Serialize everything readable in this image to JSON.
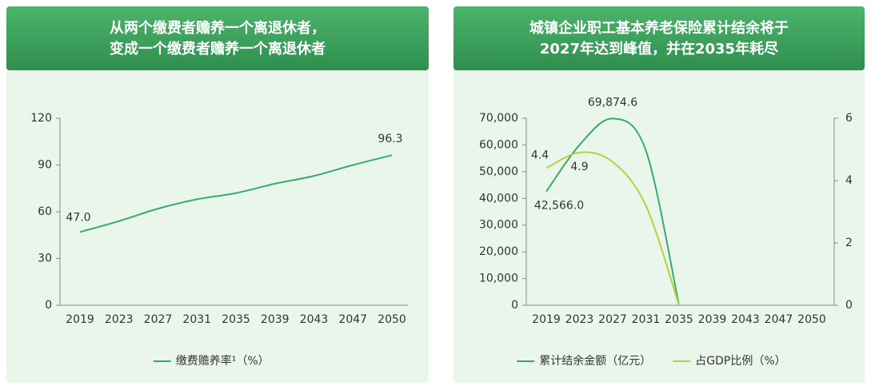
{
  "chart_data": [
    {
      "type": "line",
      "title": [
        "从两个缴费者赡养一个离退休者，",
        "变成一个缴费者赡养一个离退休者"
      ],
      "categories": [
        "2019",
        "2023",
        "2027",
        "2031",
        "2035",
        "2039",
        "2043",
        "2047",
        "2050"
      ],
      "series": [
        {
          "name": "缴费赡养率¹（%）",
          "color": "#3aab68",
          "values": [
            47.0,
            54,
            62,
            68,
            72,
            78,
            83,
            90,
            96.3
          ],
          "value_labels": [
            "47.0",
            null,
            null,
            null,
            null,
            null,
            null,
            null,
            "96.3"
          ]
        }
      ],
      "ylim": [
        0,
        120
      ],
      "yticks": [
        0,
        30,
        60,
        90,
        120
      ]
    },
    {
      "type": "line",
      "title": [
        "城镇企业职工基本养老保险累计结余将于",
        "2027年达到峰值，并在2035年耗尽"
      ],
      "categories": [
        "2019",
        "2023",
        "2027",
        "2031",
        "2035",
        "2039",
        "2043",
        "2047",
        "2050"
      ],
      "series": [
        {
          "name": "累计结余金额（亿元）",
          "color": "#3aab68",
          "values": [
            42566.0,
            60000,
            69874.6,
            58000,
            0,
            null,
            null,
            null,
            null
          ],
          "value_labels": [
            "42,566.0",
            null,
            "69,874.6",
            null,
            null,
            null,
            null,
            null,
            null
          ]
        },
        {
          "name": "占GDP比例（%）",
          "color": "#b8d03e",
          "axis": "y2",
          "values": [
            4.4,
            4.9,
            4.6,
            3.2,
            0,
            null,
            null,
            null,
            null
          ],
          "value_labels": [
            "4.4",
            "4.9",
            null,
            null,
            null,
            null,
            null,
            null,
            null
          ]
        }
      ],
      "ylim": [
        0,
        70000
      ],
      "yticks": [
        0,
        {
          "value": 10000,
          "label": "10,000"
        },
        {
          "value": 20000,
          "label": "20,000"
        },
        {
          "value": 30000,
          "label": "30,000"
        },
        {
          "value": 40000,
          "label": "40,000"
        },
        {
          "value": 50000,
          "label": "50,000"
        },
        {
          "value": 60000,
          "label": "60,000"
        },
        {
          "value": 70000,
          "label": "70,000"
        }
      ],
      "y2lim": [
        0,
        6
      ],
      "y2ticks": [
        0,
        2,
        4,
        6
      ]
    }
  ]
}
